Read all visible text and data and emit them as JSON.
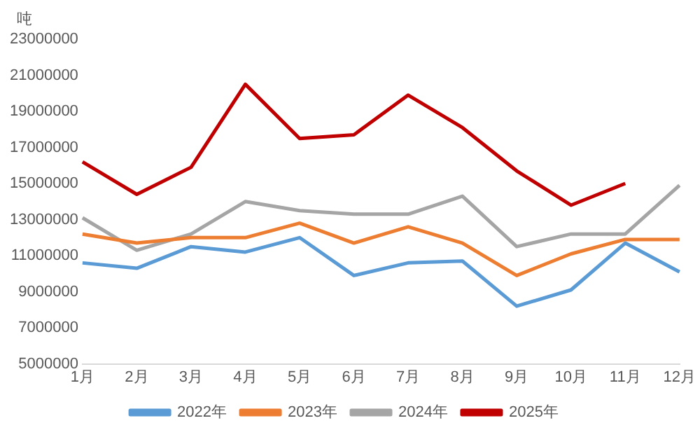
{
  "chart_data": {
    "type": "line",
    "ylabel": "吨",
    "categories": [
      "1月",
      "2月",
      "3月",
      "4月",
      "5月",
      "6月",
      "7月",
      "8月",
      "9月",
      "10月",
      "11月",
      "12月"
    ],
    "series": [
      {
        "name": "2022年",
        "color": "#5b9bd5",
        "values": [
          10600000,
          10300000,
          11500000,
          11200000,
          12000000,
          9900000,
          10600000,
          10700000,
          8200000,
          9100000,
          11700000,
          10100000
        ]
      },
      {
        "name": "2023年",
        "color": "#ed7d31",
        "values": [
          12200000,
          11700000,
          12000000,
          12000000,
          12800000,
          11700000,
          12600000,
          11700000,
          9900000,
          11100000,
          11900000,
          11900000
        ]
      },
      {
        "name": "2024年",
        "color": "#a5a5a5",
        "values": [
          13100000,
          11300000,
          12200000,
          14000000,
          13500000,
          13300000,
          13300000,
          14300000,
          11500000,
          12200000,
          12200000,
          14900000
        ]
      },
      {
        "name": "2025年",
        "color": "#c00000",
        "values": [
          16200000,
          14400000,
          15900000,
          20500000,
          17500000,
          17700000,
          19900000,
          18100000,
          15700000,
          13800000,
          15000000,
          null
        ]
      }
    ],
    "ylim": [
      5000000,
      23000000
    ],
    "yticks": [
      5000000,
      7000000,
      9000000,
      11000000,
      13000000,
      15000000,
      17000000,
      19000000,
      21000000,
      23000000
    ],
    "grid": false,
    "legend": "bottom",
    "marker": "none",
    "line_style": "solid"
  }
}
